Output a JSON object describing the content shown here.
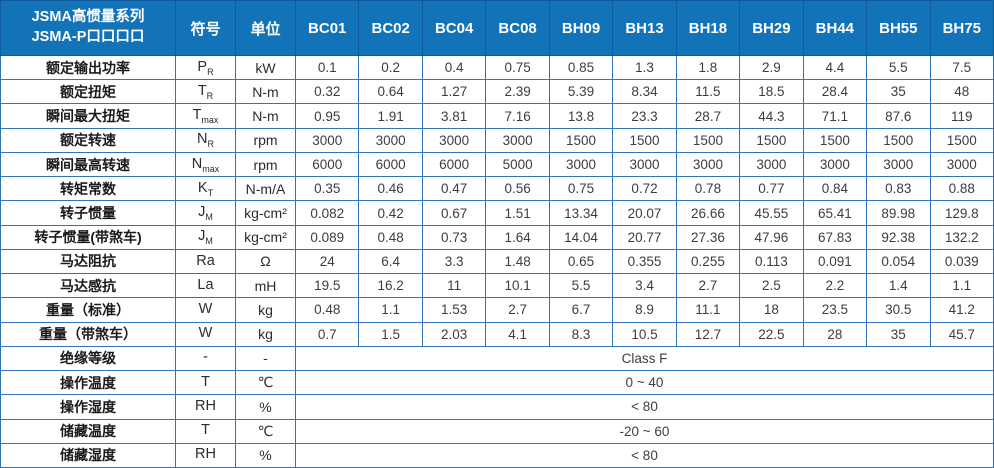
{
  "header": {
    "title_line1": "JSMA高惯量系列",
    "title_line2": "JSMA-P口口口口",
    "symbol_col": "符号",
    "unit_col": "单位",
    "models": [
      "BC01",
      "BC02",
      "BC04",
      "BC08",
      "BH09",
      "BH13",
      "BH18",
      "BH29",
      "BH44",
      "BH55",
      "BH75"
    ]
  },
  "rows": [
    {
      "label": "额定输出功率",
      "sym": "P",
      "sub": "R",
      "unit": "kW",
      "values": [
        "0.1",
        "0.2",
        "0.4",
        "0.75",
        "0.85",
        "1.3",
        "1.8",
        "2.9",
        "4.4",
        "5.5",
        "7.5"
      ]
    },
    {
      "label": "额定扭矩",
      "sym": "T",
      "sub": "R",
      "unit": "N-m",
      "values": [
        "0.32",
        "0.64",
        "1.27",
        "2.39",
        "5.39",
        "8.34",
        "11.5",
        "18.5",
        "28.4",
        "35",
        "48"
      ]
    },
    {
      "label": "瞬间最大扭矩",
      "sym": "T",
      "sub": "max",
      "unit": "N-m",
      "values": [
        "0.95",
        "1.91",
        "3.81",
        "7.16",
        "13.8",
        "23.3",
        "28.7",
        "44.3",
        "71.1",
        "87.6",
        "119"
      ]
    },
    {
      "label": "额定转速",
      "sym": "N",
      "sub": "R",
      "unit": "rpm",
      "values": [
        "3000",
        "3000",
        "3000",
        "3000",
        "1500",
        "1500",
        "1500",
        "1500",
        "1500",
        "1500",
        "1500"
      ]
    },
    {
      "label": "瞬间最高转速",
      "sym": "N",
      "sub": "max",
      "unit": "rpm",
      "values": [
        "6000",
        "6000",
        "6000",
        "5000",
        "3000",
        "3000",
        "3000",
        "3000",
        "3000",
        "3000",
        "3000"
      ]
    },
    {
      "label": "转矩常数",
      "sym": "K",
      "sub": "T",
      "unit": "N-m/A",
      "values": [
        "0.35",
        "0.46",
        "0.47",
        "0.56",
        "0.75",
        "0.72",
        "0.78",
        "0.77",
        "0.84",
        "0.83",
        "0.88"
      ]
    },
    {
      "label": "转子惯量",
      "sym": "J",
      "sub": "M",
      "unit": "kg-cm²",
      "values": [
        "0.082",
        "0.42",
        "0.67",
        "1.51",
        "13.34",
        "20.07",
        "26.66",
        "45.55",
        "65.41",
        "89.98",
        "129.8"
      ]
    },
    {
      "label": "转子惯量(带煞车)",
      "sym": "J",
      "sub": "M",
      "unit": "kg-cm²",
      "values": [
        "0.089",
        "0.48",
        "0.73",
        "1.64",
        "14.04",
        "20.77",
        "27.36",
        "47.96",
        "67.83",
        "92.38",
        "132.2"
      ]
    },
    {
      "label": "马达阻抗",
      "sym": "Ra",
      "sub": "",
      "unit": "Ω",
      "values": [
        "24",
        "6.4",
        "3.3",
        "1.48",
        "0.65",
        "0.355",
        "0.255",
        "0.113",
        "0.091",
        "0.054",
        "0.039"
      ]
    },
    {
      "label": "马达感抗",
      "sym": "La",
      "sub": "",
      "unit": "mH",
      "values": [
        "19.5",
        "16.2",
        "11",
        "10.1",
        "5.5",
        "3.4",
        "2.7",
        "2.5",
        "2.2",
        "1.4",
        "1.1"
      ]
    },
    {
      "label": "重量（标准）",
      "sym": "W",
      "sub": "",
      "unit": "kg",
      "values": [
        "0.48",
        "1.1",
        "1.53",
        "2.7",
        "6.7",
        "8.9",
        "11.1",
        "18",
        "23.5",
        "30.5",
        "41.2"
      ]
    },
    {
      "label": "重量（带煞车）",
      "sym": "W",
      "sub": "",
      "unit": "kg",
      "values": [
        "0.7",
        "1.5",
        "2.03",
        "4.1",
        "8.3",
        "10.5",
        "12.7",
        "22.5",
        "28",
        "35",
        "45.7"
      ]
    },
    {
      "label": "绝缘等级",
      "sym": "-",
      "sub": "",
      "unit": "-",
      "merged_value": "Class F"
    },
    {
      "label": "操作温度",
      "sym": "T",
      "sub": "",
      "unit": "℃",
      "merged_value": "0 ~ 40"
    },
    {
      "label": "操作湿度",
      "sym": "RH",
      "sub": "",
      "unit": "%",
      "merged_value": "< 80"
    },
    {
      "label": "储藏温度",
      "sym": "T",
      "sub": "",
      "unit": "℃",
      "merged_value": "-20 ~ 60"
    },
    {
      "label": "储藏湿度",
      "sym": "RH",
      "sub": "",
      "unit": "%",
      "merged_value": "< 80"
    }
  ],
  "colors": {
    "header_bg": "#1273B9",
    "header_divider": "#0D5A9C",
    "body_border": "#2E74B6",
    "value_text": "#3D3D3D"
  }
}
